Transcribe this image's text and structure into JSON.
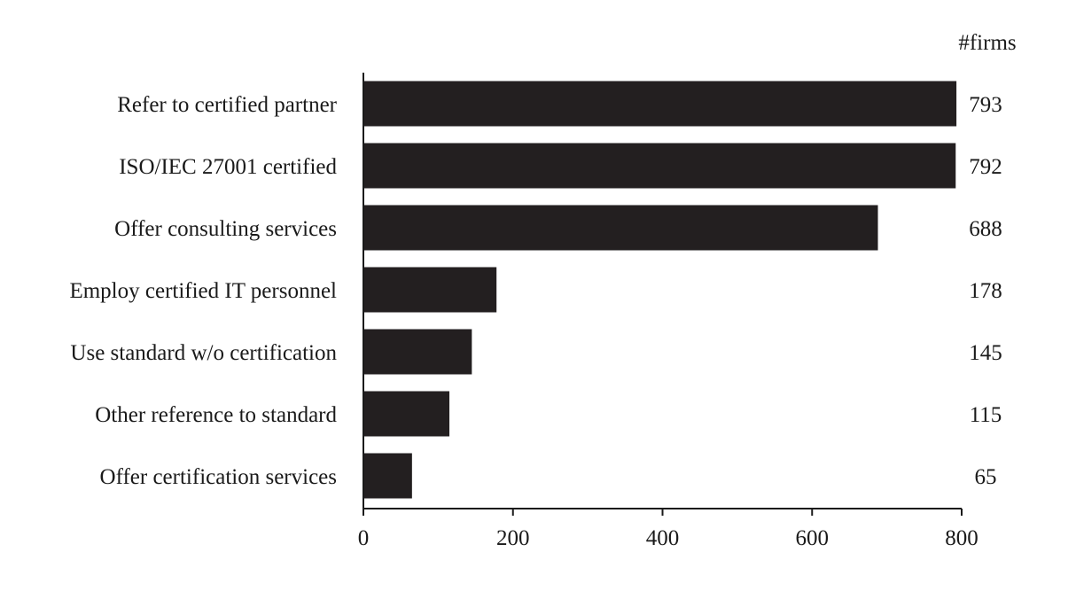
{
  "chart_data": {
    "type": "bar",
    "orientation": "horizontal",
    "categories": [
      "Refer to certified partner",
      "ISO/IEC 27001 certified",
      "Offer consulting services",
      "Employ certified IT personnel",
      "Use standard w/o certification",
      "Other reference to standard",
      "Offer certification services"
    ],
    "values": [
      793,
      792,
      688,
      178,
      145,
      115,
      65
    ],
    "value_labels": [
      "793",
      "792",
      "688",
      "178",
      "145",
      "115",
      "65"
    ],
    "value_column_header": "#firms",
    "title": "",
    "xlabel": "",
    "ylabel": "",
    "xlim": [
      0,
      800
    ],
    "xticks": [
      0,
      200,
      400,
      600,
      800
    ],
    "xtick_labels": [
      "0",
      "200",
      "400",
      "600",
      "800"
    ],
    "grid": false,
    "bar_color": "#231f20"
  }
}
